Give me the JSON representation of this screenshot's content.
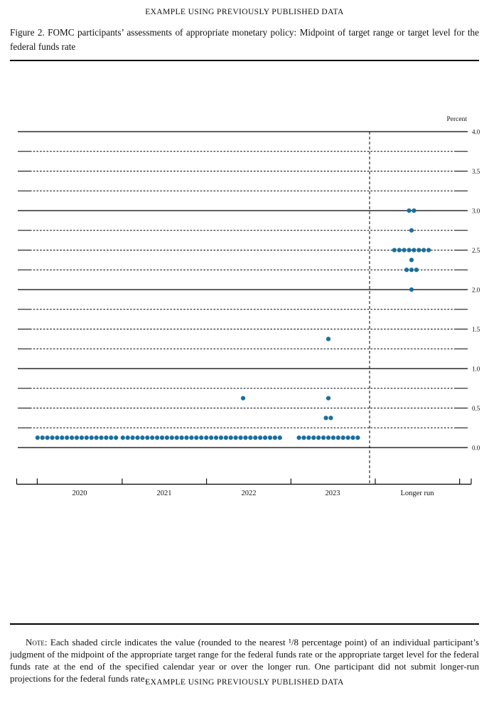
{
  "header": {
    "title": "EXAMPLE USING PREVIOUSLY PUBLISHED DATA"
  },
  "figure": {
    "caption": "Figure 2.  FOMC participants’ assessments of appropriate monetary policy:  Midpoint of target range or target level for the federal funds rate"
  },
  "chart_data": {
    "type": "scatter",
    "title": "",
    "ylabel": "Percent",
    "ylim": [
      0.0,
      4.0
    ],
    "gridline_interval": 0.25,
    "solid_gridlines": [
      0.0,
      1.0,
      2.0,
      3.0,
      4.0
    ],
    "ytick_labels": [
      "4.0",
      "3.5",
      "3.0",
      "2.5",
      "2.0",
      "1.5",
      "1.0",
      "0.5",
      "0.0"
    ],
    "categories": [
      "2020",
      "2021",
      "2022",
      "2023",
      "Longer run"
    ],
    "separator_before_category": "Longer run",
    "dot_color": "#1b6f9d",
    "series": [
      {
        "category": "2020",
        "dots": [
          {
            "value": 0.125,
            "count": 17
          }
        ]
      },
      {
        "category": "2021",
        "dots": [
          {
            "value": 0.125,
            "count": 17
          }
        ]
      },
      {
        "category": "2022",
        "dots": [
          {
            "value": 0.125,
            "count": 16
          },
          {
            "value": 0.625,
            "count": 1
          }
        ]
      },
      {
        "category": "2023",
        "dots": [
          {
            "value": 0.125,
            "count": 13
          },
          {
            "value": 0.375,
            "count": 2
          },
          {
            "value": 0.625,
            "count": 1
          },
          {
            "value": 1.375,
            "count": 1
          }
        ]
      },
      {
        "category": "Longer run",
        "dots": [
          {
            "value": 2.0,
            "count": 1
          },
          {
            "value": 2.25,
            "count": 3
          },
          {
            "value": 2.375,
            "count": 1
          },
          {
            "value": 2.5,
            "count": 8
          },
          {
            "value": 2.75,
            "count": 1
          },
          {
            "value": 3.0,
            "count": 2
          }
        ]
      }
    ]
  },
  "note": {
    "label": "Note:",
    "text": "Each shaded circle indicates the value (rounded to the nearest ¹/8 percentage point) of an individual participant’s judgment of the midpoint of the appropriate target range for the federal funds rate or the appropriate target level for the federal funds rate at the end of the specified calendar year or over the longer run. One participant did not submit longer-run projections for the federal funds rate."
  },
  "footer": {
    "title": "EXAMPLE USING PREVIOUSLY PUBLISHED DATA"
  }
}
